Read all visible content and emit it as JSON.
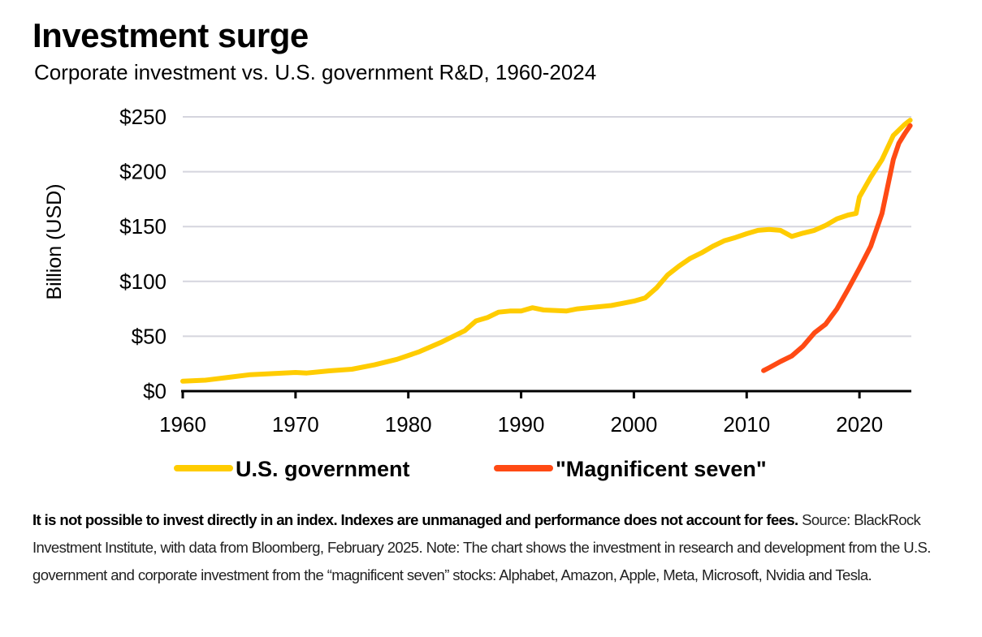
{
  "title": "Investment surge",
  "subtitle": "Corporate investment vs. U.S. government R&D, 1960-2024",
  "footnote": {
    "disclaimer": "It is not possible to invest directly in an index. Indexes are unmanaged and performance does not account for fees.",
    "source": " Source: BlackRock Investment Institute, with data from Bloomberg, February 2025. Note: The chart shows the investment in research and development from the U.S. government and corporate investment from the “magnificent seven” stocks: Alphabet, Amazon, Apple, Meta, Microsoft, Nvidia and Tesla."
  },
  "chart_data": {
    "type": "line",
    "ylabel": "Billion (USD)",
    "xlabel": "",
    "xlim": [
      1960,
      2024.6
    ],
    "ylim": [
      0,
      250
    ],
    "x_ticks": [
      1960,
      1970,
      1980,
      1990,
      2000,
      2010,
      2020
    ],
    "y_ticks": [
      0,
      50,
      100,
      150,
      200,
      250
    ],
    "y_tick_labels": [
      "$0",
      "$50",
      "$100",
      "$150",
      "$200",
      "$250"
    ],
    "grid": "horizontal",
    "legend": "bottom",
    "series": [
      {
        "name": "U.S. government",
        "color": "#FFCC00",
        "x": [
          1960,
          1962,
          1964,
          1966,
          1968,
          1970,
          1971,
          1973,
          1975,
          1977,
          1979,
          1981,
          1983,
          1985,
          1986,
          1987,
          1988,
          1989,
          1990,
          1991,
          1992,
          1994,
          1995,
          1996,
          1998,
          2000,
          2001,
          2002,
          2003,
          2004,
          2005,
          2006,
          2007,
          2008,
          2009,
          2010,
          2011,
          2012,
          2013,
          2014,
          2015,
          2016,
          2017,
          2018,
          2019,
          2019.7,
          2020,
          2021,
          2022,
          2023,
          2024,
          2024.5
        ],
        "y": [
          9,
          10,
          12.5,
          15,
          16,
          17,
          16.5,
          18.5,
          20,
          24,
          29,
          36,
          45,
          55,
          64,
          67,
          72,
          73,
          73,
          76,
          74,
          73,
          75,
          76,
          78,
          82,
          85,
          94,
          106,
          114,
          121,
          126,
          132,
          137,
          140,
          143.5,
          146.5,
          147.4,
          146.5,
          141,
          144,
          146.5,
          151,
          157,
          160.5,
          162,
          177,
          195,
          211,
          233,
          243,
          247
        ]
      },
      {
        "name": "\"Magnificent seven\"",
        "color": "#FF4A14",
        "x": [
          2011.5,
          2012,
          2013,
          2014,
          2015,
          2016,
          2017,
          2018,
          2019,
          2020,
          2021,
          2022,
          2023,
          2023.5,
          2024,
          2024.5
        ],
        "y": [
          18.7,
          21.4,
          27,
          32,
          41,
          53,
          61,
          75,
          93,
          112,
          132,
          162,
          211,
          226,
          234.5,
          242
        ]
      }
    ]
  }
}
